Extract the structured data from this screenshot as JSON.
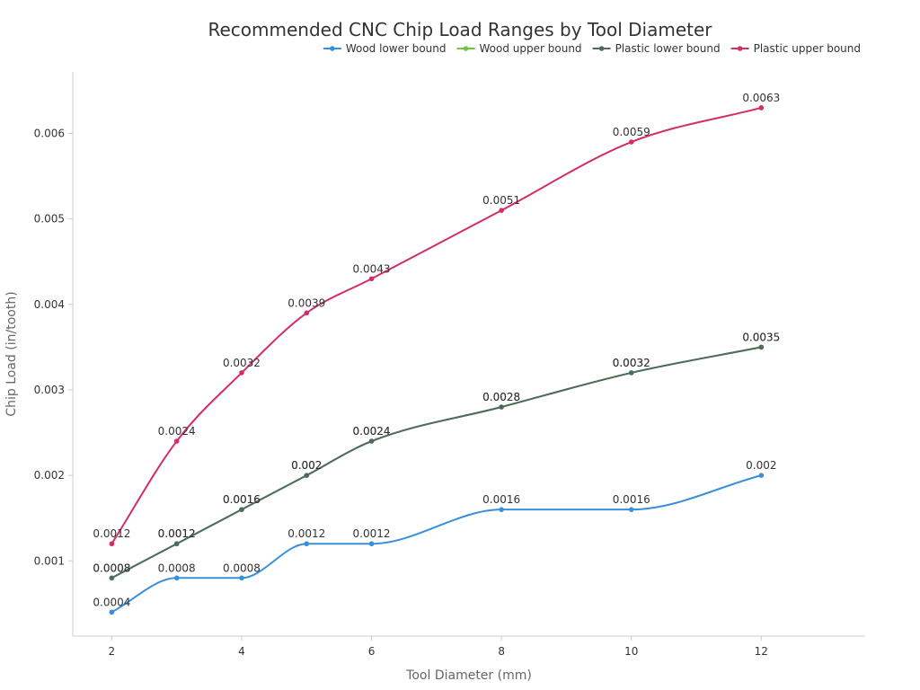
{
  "chart_data": {
    "type": "line",
    "title": "Recommended CNC Chip Load Ranges by Tool Diameter",
    "xlabel": "Tool Diameter (mm)",
    "ylabel": "Chip Load (in/tooth)",
    "x": [
      2,
      3,
      4,
      5,
      6,
      8,
      10,
      12
    ],
    "x_ticks": [
      2,
      4,
      6,
      8,
      10,
      12
    ],
    "y_ticks": [
      0.001,
      0.002,
      0.003,
      0.004,
      0.005,
      0.006
    ],
    "y_tick_labels": [
      "0.001",
      "0.002",
      "0.003",
      "0.004",
      "0.005",
      "0.006"
    ],
    "xlim": [
      1.4,
      13.6
    ],
    "ylim": [
      0.00012,
      0.00672
    ],
    "grid": false,
    "legend_position": "top-right",
    "series": [
      {
        "name": "Wood lower bound",
        "color": "#3a8fd9",
        "values": [
          0.0004,
          0.0008,
          0.0008,
          0.0012,
          0.0012,
          0.0016,
          0.0016,
          0.002
        ],
        "labels": [
          "0.0004",
          "0.0008",
          "0.0008",
          "0.0012",
          "0.0012",
          "0.0016",
          "0.0016",
          "0.002"
        ]
      },
      {
        "name": "Wood upper bound",
        "color": "#6cc63f",
        "values": [
          0.0008,
          0.0012,
          0.0016,
          0.002,
          0.0024,
          0.0028,
          0.0032,
          0.0035
        ],
        "labels": [
          "0.0008",
          "0.0012",
          "0.0016",
          "0.002",
          "0.0024",
          "0.0028",
          "0.0032",
          "0.0035"
        ]
      },
      {
        "name": "Plastic lower bound",
        "color": "#4f6b5e",
        "values": [
          0.0008,
          0.0012,
          0.0016,
          0.002,
          0.0024,
          0.0028,
          0.0032,
          0.0035
        ],
        "labels": [
          "0.0008",
          "0.0012",
          "0.0016",
          "0.002",
          "0.0024",
          "0.0028",
          "0.0032",
          "0.0035"
        ]
      },
      {
        "name": "Plastic upper bound",
        "color": "#d22e62",
        "values": [
          0.0012,
          0.0024,
          0.0032,
          0.0039,
          0.0043,
          0.0051,
          0.0059,
          0.0063
        ],
        "labels": [
          "0.0012",
          "0.0024",
          "0.0032",
          "0.0039",
          "0.0043",
          "0.0051",
          "0.0059",
          "0.0063"
        ]
      }
    ]
  }
}
